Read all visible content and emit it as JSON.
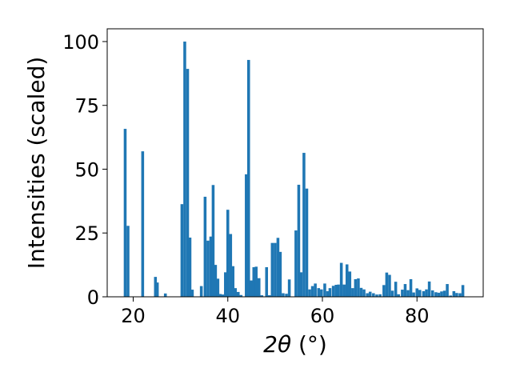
{
  "chart_data": {
    "type": "bar",
    "xlabel_main": "2θ",
    "xlabel_unit": " (°)",
    "ylabel": "Intensities (scaled)",
    "xlim": [
      14.5,
      94.0
    ],
    "ylim": [
      0,
      105
    ],
    "xticks": [
      20,
      40,
      60,
      80
    ],
    "yticks": [
      0,
      25,
      50,
      75,
      100
    ],
    "bar_width": 0.6,
    "bar_color": "#1f77b4",
    "grid": false,
    "x": [
      18.3,
      18.9,
      22.0,
      24.7,
      25.1,
      26.8,
      30.3,
      30.9,
      31.5,
      32.0,
      32.5,
      34.4,
      35.2,
      35.8,
      36.4,
      36.9,
      37.4,
      37.9,
      38.4,
      38.9,
      39.5,
      40.0,
      40.6,
      41.1,
      41.6,
      42.2,
      42.8,
      43.9,
      44.4,
      44.9,
      45.5,
      46.0,
      46.6,
      47.2,
      48.2,
      48.8,
      49.4,
      50.0,
      50.6,
      51.1,
      51.7,
      52.4,
      53.0,
      54.4,
      55.0,
      55.5,
      56.1,
      56.7,
      57.3,
      57.9,
      58.5,
      59.2,
      59.8,
      60.5,
      61.1,
      61.6,
      62.3,
      62.9,
      63.4,
      64.0,
      64.6,
      65.2,
      65.8,
      66.4,
      67.0,
      67.6,
      68.2,
      68.8,
      69.5,
      70.1,
      70.8,
      71.5,
      72.2,
      73.0,
      73.6,
      74.2,
      74.8,
      75.5,
      76.1,
      76.9,
      77.5,
      78.1,
      78.7,
      79.3,
      80.0,
      80.6,
      81.4,
      82.0,
      82.6,
      83.3,
      84.0,
      84.6,
      85.2,
      85.8,
      86.4,
      87.1,
      87.8,
      88.4,
      89.1,
      89.7
    ],
    "values": [
      65.8,
      27.8,
      57.0,
      7.8,
      5.6,
      1.3,
      36.3,
      100.0,
      89.3,
      23.2,
      2.8,
      4.2,
      39.2,
      22.0,
      23.6,
      43.8,
      12.5,
      7.1,
      1.1,
      0.9,
      9.6,
      34.1,
      24.6,
      12.0,
      3.4,
      1.9,
      0.7,
      48.0,
      92.8,
      6.4,
      11.6,
      11.8,
      7.3,
      0.6,
      11.6,
      0.6,
      21.1,
      21.1,
      23.1,
      17.6,
      1.4,
      1.2,
      6.8,
      26.0,
      43.9,
      9.6,
      56.4,
      42.4,
      2.9,
      4.2,
      5.2,
      3.4,
      2.9,
      5.2,
      2.2,
      3.4,
      4.3,
      4.7,
      4.8,
      13.3,
      4.8,
      12.7,
      9.9,
      3.4,
      6.9,
      7.2,
      3.5,
      2.9,
      1.4,
      2.0,
      1.4,
      0.9,
      1.0,
      4.6,
      9.5,
      8.6,
      2.4,
      5.9,
      1.0,
      2.8,
      5.0,
      2.6,
      6.9,
      1.7,
      3.3,
      2.7,
      2.2,
      2.9,
      6.0,
      2.5,
      1.8,
      1.6,
      2.1,
      2.4,
      5.0,
      0.5,
      2.2,
      1.5,
      1.4,
      4.6
    ]
  }
}
